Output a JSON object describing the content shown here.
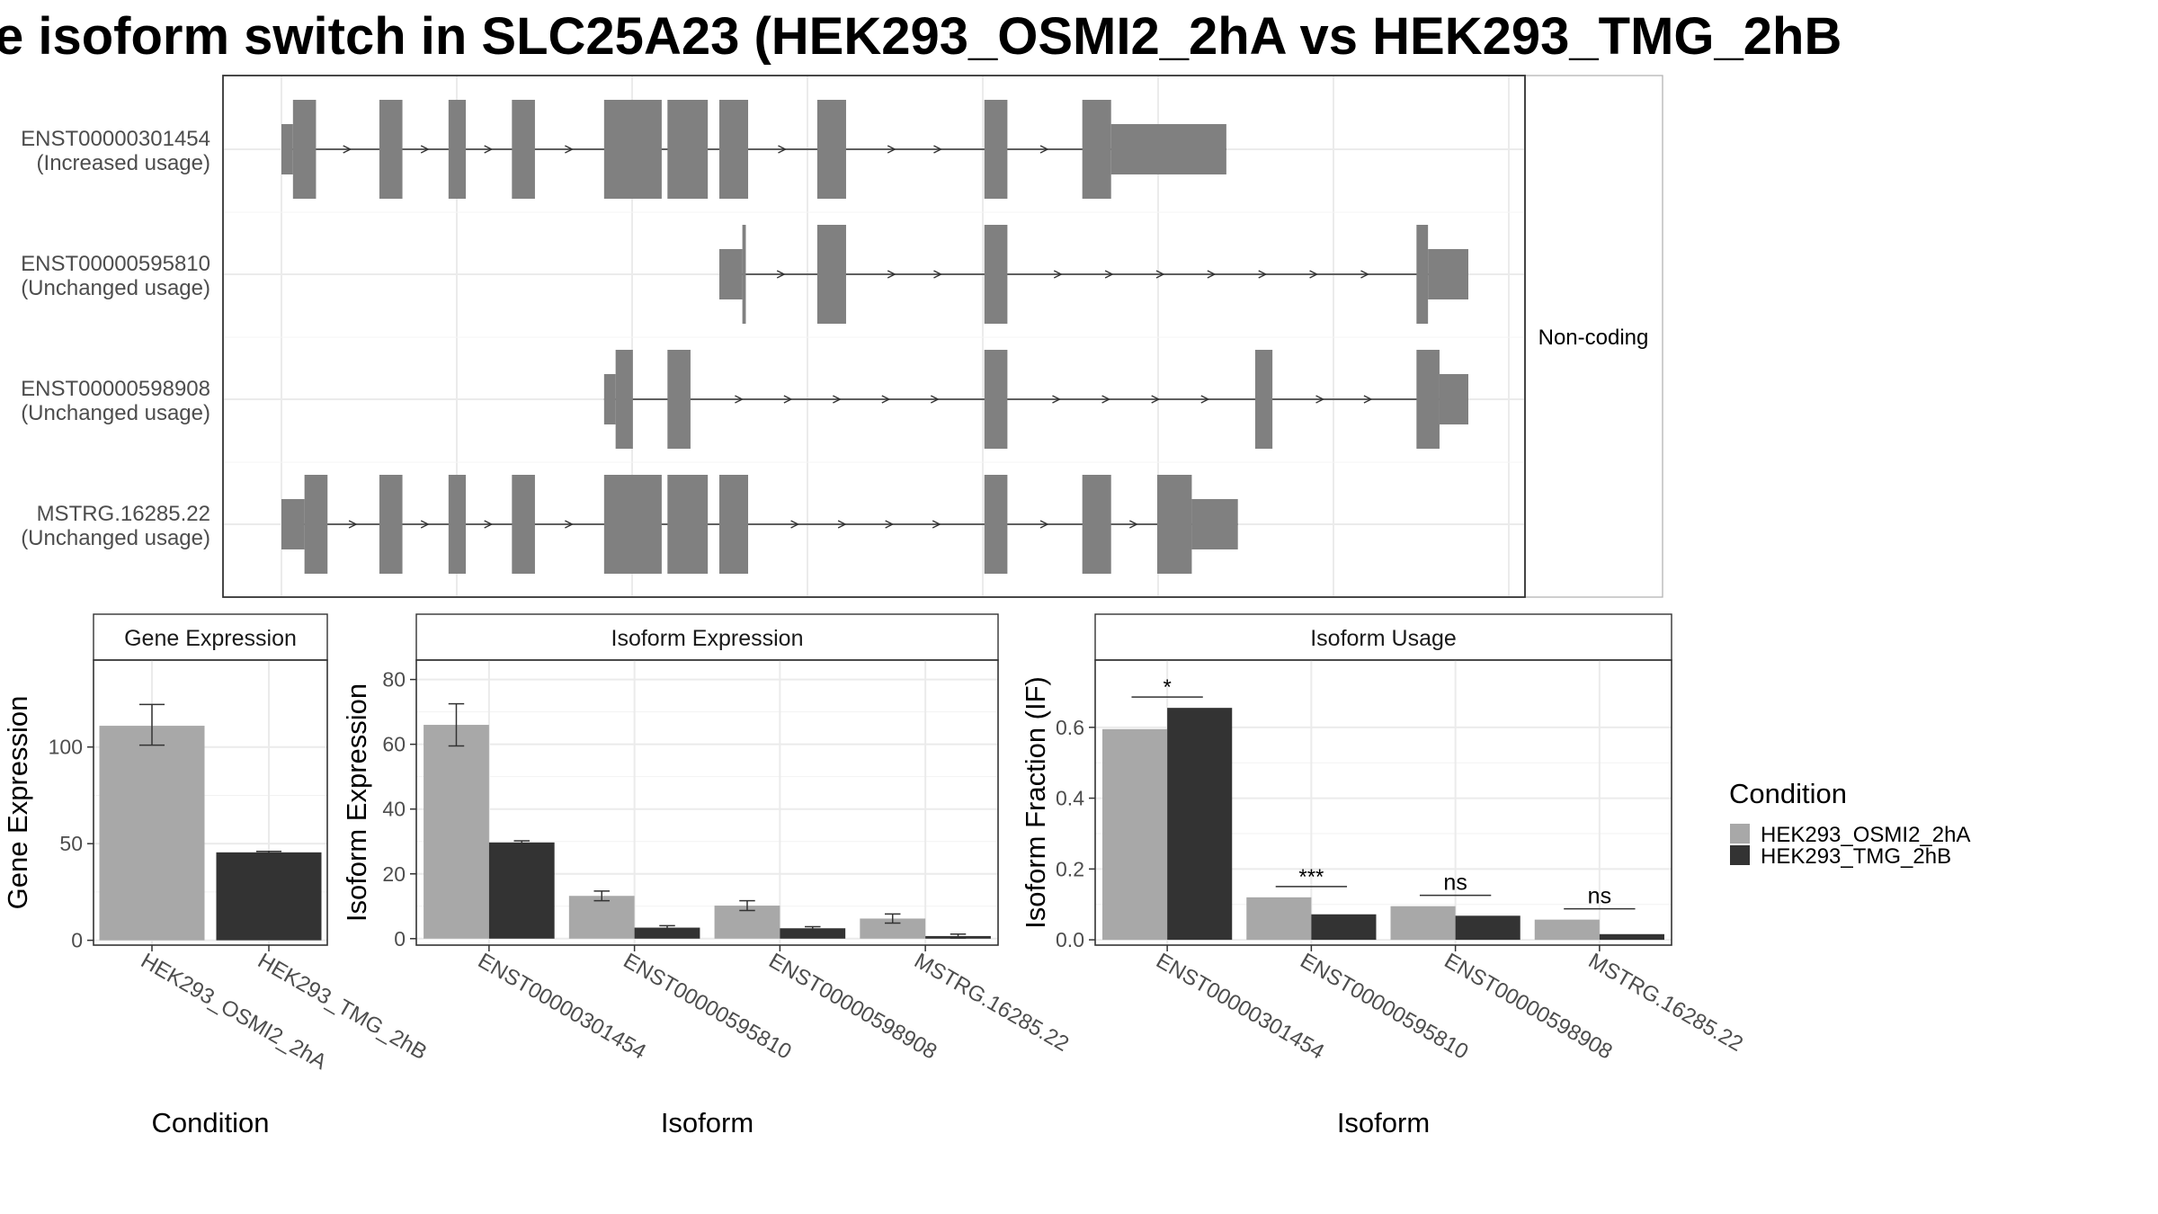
{
  "title": "e isoform switch in SLC25A23 (HEK293_OSMI2_2hA vs HEK293_TMG_2hB",
  "colors": {
    "cond1": "#a8a8a8",
    "cond2": "#333333",
    "exon": "#808080",
    "grid": "#ebebeb",
    "line": "#333333"
  },
  "structure": {
    "strip_label": "Non-coding",
    "isoforms": [
      {
        "id": "ENST00000301454",
        "note": "(Increased usage)",
        "exons": [
          [
            0,
            1,
            "utr"
          ],
          [
            1,
            3,
            "cds"
          ],
          [
            8.5,
            10.5,
            "cds"
          ],
          [
            14.5,
            16,
            "cds"
          ],
          [
            20,
            22,
            "cds"
          ],
          [
            28,
            33,
            "cds"
          ],
          [
            33.5,
            37,
            "cds"
          ],
          [
            38,
            40.5,
            "cds"
          ],
          [
            46.5,
            49,
            "cds"
          ],
          [
            61,
            63,
            "cds"
          ],
          [
            69.5,
            72,
            "cds"
          ],
          [
            72,
            82,
            "utr"
          ]
        ]
      },
      {
        "id": "ENST00000595810",
        "note": "(Unchanged usage)",
        "exons": [
          [
            38,
            40,
            "utr"
          ],
          [
            40,
            40.3,
            "cds"
          ],
          [
            46.5,
            49,
            "cds"
          ],
          [
            61,
            63,
            "cds"
          ],
          [
            98.5,
            99.5,
            "cds"
          ],
          [
            99.5,
            103,
            "utr"
          ]
        ]
      },
      {
        "id": "ENST00000598908",
        "note": "(Unchanged usage)",
        "exons": [
          [
            28,
            29,
            "utr"
          ],
          [
            29,
            30.5,
            "cds"
          ],
          [
            33.5,
            35.5,
            "cds"
          ],
          [
            61,
            63,
            "cds"
          ],
          [
            84.5,
            86,
            "cds"
          ],
          [
            98.5,
            100.5,
            "cds"
          ],
          [
            100.5,
            103,
            "utr"
          ]
        ]
      },
      {
        "id": "MSTRG.16285.22",
        "note": "(Unchanged usage)",
        "exons": [
          [
            0,
            2,
            "utr"
          ],
          [
            2,
            4,
            "cds"
          ],
          [
            8.5,
            10.5,
            "cds"
          ],
          [
            14.5,
            16,
            "cds"
          ],
          [
            20,
            22,
            "cds"
          ],
          [
            28,
            33,
            "cds"
          ],
          [
            33.5,
            37,
            "cds"
          ],
          [
            38,
            40.5,
            "cds"
          ],
          [
            61,
            63,
            "cds"
          ],
          [
            69.5,
            72,
            "cds"
          ],
          [
            76,
            79,
            "cds"
          ],
          [
            79,
            83,
            "utr"
          ]
        ]
      }
    ]
  },
  "legend": {
    "title": "Condition",
    "items": [
      "HEK293_OSMI2_2hA",
      "HEK293_TMG_2hB"
    ]
  },
  "chart_data": [
    {
      "type": "bar",
      "title": "Gene Expression",
      "xlabel": "Condition",
      "ylabel": "Gene Expression",
      "categories": [
        "HEK293_OSMI2_2hA",
        "HEK293_TMG_2hB"
      ],
      "values": [
        111,
        45.5
      ],
      "error": [
        [
          101,
          122
        ],
        [
          44.5,
          46
        ]
      ],
      "ylim": [
        -2.5,
        145
      ],
      "yticks": [
        0,
        50,
        100
      ]
    },
    {
      "type": "bar",
      "title": "Isoform Expression",
      "xlabel": "Isoform",
      "ylabel": "Isoform Expression",
      "categories": [
        "ENST00000301454",
        "ENST00000595810",
        "ENST00000598908",
        "MSTRG.16285.22"
      ],
      "series": [
        {
          "name": "HEK293_OSMI2_2hA",
          "values": [
            66,
            13.2,
            10.2,
            6.2
          ],
          "error": [
            [
              59.5,
              72.5
            ],
            [
              11.7,
              14.7
            ],
            [
              8.7,
              11.7
            ],
            [
              4.8,
              7.6
            ]
          ]
        },
        {
          "name": "HEK293_TMG_2hB",
          "values": [
            29.7,
            3.4,
            3.2,
            0.8
          ],
          "error": [
            [
              29.2,
              30.2
            ],
            [
              2.8,
              4.0
            ],
            [
              2.7,
              3.7
            ],
            [
              0.2,
              1.4
            ]
          ]
        }
      ],
      "ylim": [
        -2,
        86
      ],
      "yticks": [
        0,
        20,
        40,
        60,
        80
      ]
    },
    {
      "type": "bar",
      "title": "Isoform Usage",
      "xlabel": "Isoform",
      "ylabel": "Isoform Fraction (IF)",
      "categories": [
        "ENST00000301454",
        "ENST00000595810",
        "ENST00000598908",
        "MSTRG.16285.22"
      ],
      "series": [
        {
          "name": "HEK293_OSMI2_2hA",
          "values": [
            0.595,
            0.12,
            0.095,
            0.057
          ]
        },
        {
          "name": "HEK293_TMG_2hB",
          "values": [
            0.655,
            0.072,
            0.068,
            0.016
          ]
        }
      ],
      "significance": [
        "*",
        "***",
        "ns",
        "ns"
      ],
      "ylim": [
        -0.015,
        0.79
      ],
      "yticks": [
        0.0,
        0.2,
        0.4,
        0.6
      ],
      "ytick_labels": [
        "0.0",
        "0.2",
        "0.4",
        "0.6"
      ]
    }
  ]
}
